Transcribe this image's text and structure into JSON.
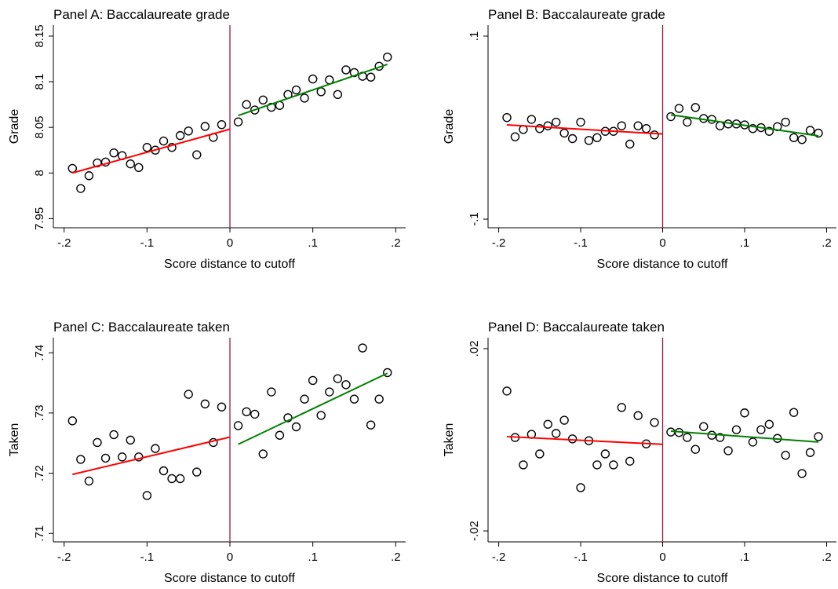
{
  "chart_data": [
    {
      "type": "scatter",
      "title": "Panel A: Baccalaureate grade",
      "x_label": "Score distance to cutoff",
      "y_label": "Grade",
      "xlim": [
        -0.213,
        0.212
      ],
      "ylim": [
        7.94,
        8.162
      ],
      "xticks": [
        {
          "value": -0.2,
          "label": "-.2"
        },
        {
          "value": -0.1,
          "label": "-.1"
        },
        0,
        {
          "value": 0.1,
          "label": ".1"
        },
        {
          "value": 0.2,
          "label": ".2"
        }
      ],
      "yticks": [
        7.95,
        8,
        8.05,
        8.1,
        8.15
      ],
      "cutoff": 0,
      "cutoff_color": "#9b1b3b",
      "series": [
        {
          "kind": "points",
          "color": "#000000",
          "x": [
            -0.19,
            -0.18,
            -0.17,
            -0.16,
            -0.15,
            -0.14,
            -0.13,
            -0.12,
            -0.11,
            -0.1,
            -0.09,
            -0.08,
            -0.07,
            -0.06,
            -0.05,
            -0.04,
            -0.03,
            -0.02,
            -0.01,
            0.01,
            0.02,
            0.03,
            0.04,
            0.05,
            0.06,
            0.07,
            0.08,
            0.09,
            0.1,
            0.11,
            0.12,
            0.13,
            0.14,
            0.15,
            0.16,
            0.17,
            0.18,
            0.19
          ],
          "values": [
            8.005,
            7.983,
            7.997,
            8.011,
            8.012,
            8.022,
            8.019,
            8.01,
            8.006,
            8.028,
            8.025,
            8.035,
            8.028,
            8.041,
            8.046,
            8.02,
            8.051,
            8.039,
            8.053,
            8.056,
            8.075,
            8.069,
            8.08,
            8.072,
            8.074,
            8.086,
            8.091,
            8.082,
            8.103,
            8.089,
            8.102,
            8.086,
            8.113,
            8.11,
            8.106,
            8.105,
            8.117,
            8.127
          ]
        },
        {
          "kind": "fit",
          "color": "#ff0000",
          "x": [
            -0.19,
            0
          ],
          "values": [
            8.0,
            8.048
          ]
        },
        {
          "kind": "fit",
          "color": "#008000",
          "x": [
            0.01,
            0.19
          ],
          "values": [
            8.063,
            8.119
          ]
        }
      ]
    },
    {
      "type": "scatter",
      "title": "Panel B: Baccalaureate grade",
      "x_label": "Score distance to cutoff",
      "y_label": "Grade",
      "xlim": [
        -0.213,
        0.212
      ],
      "ylim": [
        -0.1094,
        0.112
      ],
      "xticks": [
        {
          "value": -0.2,
          "label": "-.2"
        },
        {
          "value": -0.1,
          "label": "-.1"
        },
        0,
        {
          "value": 0.1,
          "label": ".1"
        },
        {
          "value": 0.2,
          "label": ".2"
        }
      ],
      "yticks": [
        {
          "value": -0.1,
          "label": "-.1"
        },
        {
          "value": 0.1,
          "label": ".1"
        }
      ],
      "cutoff": 0,
      "cutoff_color": "#9b1b3b",
      "series": [
        {
          "kind": "points",
          "color": "#000000",
          "x": [
            -0.19,
            -0.18,
            -0.17,
            -0.16,
            -0.15,
            -0.14,
            -0.13,
            -0.12,
            -0.11,
            -0.1,
            -0.09,
            -0.08,
            -0.07,
            -0.06,
            -0.05,
            -0.04,
            -0.03,
            -0.02,
            -0.01,
            0.01,
            0.02,
            0.03,
            0.04,
            0.05,
            0.06,
            0.07,
            0.08,
            0.09,
            0.1,
            0.11,
            0.12,
            0.13,
            0.14,
            0.15,
            0.16,
            0.17,
            0.18,
            0.19
          ],
          "values": [
            0.011,
            -0.01,
            -0.002,
            0.009,
            -0.001,
            0.002,
            0.006,
            -0.006,
            -0.012,
            0.006,
            -0.014,
            -0.011,
            -0.004,
            -0.004,
            0.002,
            -0.018,
            0.002,
            -0.001,
            -0.008,
            0.012,
            0.021,
            0.006,
            0.022,
            0.01,
            0.009,
            0.002,
            0.004,
            0.004,
            0.003,
            -0.001,
            0.0,
            -0.004,
            0.001,
            0.006,
            -0.011,
            -0.013,
            -0.003,
            -0.006
          ]
        },
        {
          "kind": "fit",
          "color": "#ff0000",
          "x": [
            -0.19,
            0
          ],
          "values": [
            0.003,
            -0.007
          ]
        },
        {
          "kind": "fit",
          "color": "#008000",
          "x": [
            0.01,
            0.19
          ],
          "values": [
            0.014,
            -0.009
          ]
        }
      ]
    },
    {
      "type": "scatter",
      "title": "Panel C: Baccalaureate taken",
      "x_label": "Score distance to cutoff",
      "y_label": "Taken",
      "xlim": [
        -0.213,
        0.212
      ],
      "ylim": [
        0.7086,
        0.7425
      ],
      "xticks": [
        {
          "value": -0.2,
          "label": "-.2"
        },
        {
          "value": -0.1,
          "label": "-.1"
        },
        0,
        {
          "value": 0.1,
          "label": ".1"
        },
        {
          "value": 0.2,
          "label": ".2"
        }
      ],
      "yticks": [
        {
          "value": 0.71,
          "label": ".71"
        },
        {
          "value": 0.72,
          "label": ".72"
        },
        {
          "value": 0.73,
          "label": ".73"
        },
        {
          "value": 0.74,
          "label": ".74"
        }
      ],
      "cutoff": 0,
      "cutoff_color": "#9b1b3b",
      "series": [
        {
          "kind": "points",
          "color": "#000000",
          "x": [
            -0.19,
            -0.18,
            -0.17,
            -0.16,
            -0.15,
            -0.14,
            -0.13,
            -0.12,
            -0.11,
            -0.1,
            -0.09,
            -0.08,
            -0.07,
            -0.06,
            -0.05,
            -0.04,
            -0.03,
            -0.02,
            -0.01,
            0.01,
            0.02,
            0.03,
            0.04,
            0.05,
            0.06,
            0.07,
            0.08,
            0.09,
            0.1,
            0.11,
            0.12,
            0.13,
            0.14,
            0.15,
            0.16,
            0.17,
            0.18,
            0.19
          ],
          "values": [
            0.7287,
            0.7223,
            0.7187,
            0.7251,
            0.7225,
            0.7264,
            0.7227,
            0.7255,
            0.7227,
            0.7163,
            0.7241,
            0.7204,
            0.7191,
            0.7191,
            0.7331,
            0.7202,
            0.7315,
            0.7251,
            0.731,
            0.7279,
            0.7302,
            0.7298,
            0.7232,
            0.7335,
            0.7263,
            0.7292,
            0.7277,
            0.7323,
            0.7354,
            0.7296,
            0.7335,
            0.7357,
            0.7347,
            0.7323,
            0.7408,
            0.728,
            0.7323,
            0.7367
          ]
        },
        {
          "kind": "fit",
          "color": "#ff0000",
          "x": [
            -0.19,
            0
          ],
          "values": [
            0.7198,
            0.726
          ]
        },
        {
          "kind": "fit",
          "color": "#008000",
          "x": [
            0.01,
            0.19
          ],
          "values": [
            0.7248,
            0.7366
          ]
        }
      ]
    },
    {
      "type": "scatter",
      "title": "Panel D: Baccalaureate taken",
      "x_label": "Score distance to cutoff",
      "y_label": "Taken",
      "xlim": [
        -0.213,
        0.212
      ],
      "ylim": [
        -0.0224,
        0.0224
      ],
      "xticks": [
        {
          "value": -0.2,
          "label": "-.2"
        },
        {
          "value": -0.1,
          "label": "-.1"
        },
        0,
        {
          "value": 0.1,
          "label": ".1"
        },
        {
          "value": 0.2,
          "label": ".2"
        }
      ],
      "yticks": [
        {
          "value": -0.02,
          "label": "-.02"
        },
        {
          "value": 0.02,
          "label": ".02"
        }
      ],
      "cutoff": 0,
      "cutoff_color": "#9b1b3b",
      "series": [
        {
          "kind": "points",
          "color": "#000000",
          "x": [
            -0.19,
            -0.18,
            -0.17,
            -0.16,
            -0.15,
            -0.14,
            -0.13,
            -0.12,
            -0.11,
            -0.1,
            -0.09,
            -0.08,
            -0.07,
            -0.06,
            -0.05,
            -0.04,
            -0.03,
            -0.02,
            -0.01,
            0.01,
            0.02,
            0.03,
            0.04,
            0.05,
            0.06,
            0.07,
            0.08,
            0.09,
            0.1,
            0.11,
            0.12,
            0.13,
            0.14,
            0.15,
            0.16,
            0.17,
            0.18,
            0.19
          ],
          "values": [
            0.0107,
            0.0005,
            -0.0055,
            0.0012,
            -0.0031,
            0.0034,
            0.0014,
            0.0043,
            0.0002,
            -0.0105,
            -0.0002,
            -0.0055,
            -0.0031,
            -0.0055,
            0.0071,
            -0.0047,
            0.0053,
            -0.0009,
            0.0038,
            0.0017,
            0.0016,
            0.0005,
            -0.0021,
            0.0029,
            0.001,
            0.0005,
            -0.0024,
            0.0022,
            0.0059,
            -0.0005,
            0.0022,
            0.0034,
            0.0003,
            -0.0034,
            0.006,
            -0.0074,
            -0.0028,
            0.0007
          ]
        },
        {
          "kind": "fit",
          "color": "#ff0000",
          "x": [
            -0.19,
            0
          ],
          "values": [
            0.0007,
            -0.001
          ]
        },
        {
          "kind": "fit",
          "color": "#008000",
          "x": [
            0.01,
            0.19
          ],
          "values": [
            0.0019,
            -0.0005
          ]
        }
      ]
    }
  ]
}
